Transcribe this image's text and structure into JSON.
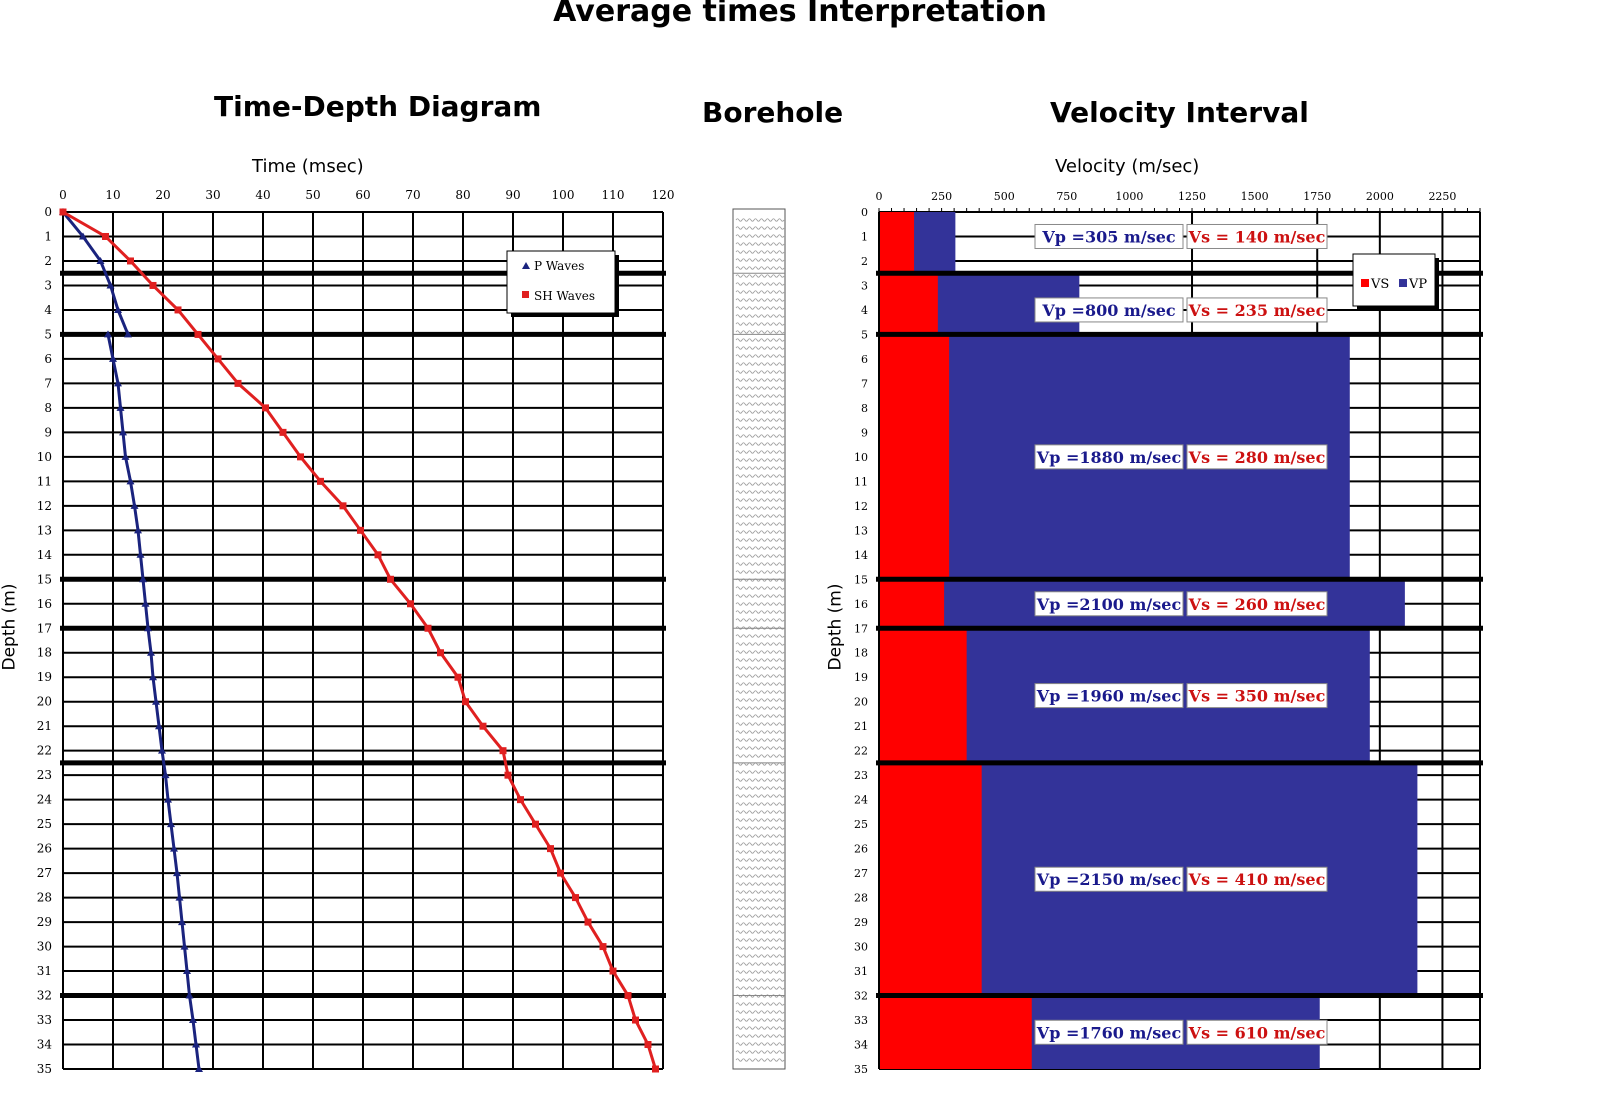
{
  "page": {
    "title": "Average times Interpretation",
    "left_title": "Time-Depth Diagram",
    "middle_title": "Borehole",
    "right_title": "Velocity Interval"
  },
  "chart_data": [
    {
      "type": "line",
      "title": "Time-Depth Diagram",
      "xlabel": "Time (msec)",
      "ylabel": "Depth (m)",
      "xlim": [
        0,
        120
      ],
      "ylim": [
        35,
        0
      ],
      "x_ticks": [
        0,
        10,
        20,
        30,
        40,
        50,
        60,
        70,
        80,
        90,
        100,
        110,
        120
      ],
      "y_ticks": [
        0,
        1,
        2,
        3,
        4,
        5,
        6,
        7,
        8,
        9,
        10,
        11,
        12,
        13,
        14,
        15,
        16,
        17,
        18,
        19,
        20,
        21,
        22,
        23,
        24,
        25,
        26,
        27,
        28,
        29,
        30,
        31,
        32,
        33,
        34,
        35
      ],
      "grid": true,
      "layer_boundaries": [
        2.5,
        5,
        15,
        17,
        22.5,
        32
      ],
      "legend": {
        "position": "top-right",
        "entries": [
          "P Waves",
          "SH Waves"
        ]
      },
      "series": [
        {
          "name": "P Waves",
          "color": "#1a237e",
          "marker": "triangle",
          "segments": [
            {
              "depth": [
                0,
                1,
                2,
                3,
                4,
                5
              ],
              "time": [
                0,
                4,
                7.5,
                9.5,
                11,
                13
              ]
            },
            {
              "depth": [
                5,
                6,
                7,
                8,
                9,
                10,
                11,
                12,
                13,
                14,
                15,
                16,
                17,
                18,
                19,
                20,
                21,
                22,
                23,
                24,
                25,
                26,
                27,
                28,
                29,
                30,
                31,
                32,
                33,
                34,
                35
              ],
              "time": [
                9,
                10,
                11,
                11.5,
                12,
                12.5,
                13.5,
                14.3,
                15,
                15.5,
                16,
                16.5,
                17,
                17.6,
                18,
                18.6,
                19.2,
                19.8,
                20.5,
                21,
                21.6,
                22.2,
                22.8,
                23.3,
                23.8,
                24.3,
                24.8,
                25.3,
                26,
                26.6,
                27.2
              ]
            }
          ]
        },
        {
          "name": "SH Waves",
          "color": "#e02020",
          "marker": "square",
          "segments": [
            {
              "depth": [
                0,
                1,
                2,
                3,
                4,
                5,
                6,
                7,
                8,
                9,
                10,
                11,
                12,
                13,
                14,
                15,
                16,
                17,
                18,
                19,
                20,
                21,
                22,
                23,
                24,
                25,
                26,
                27,
                28,
                29,
                30,
                31,
                32,
                33,
                34,
                35
              ],
              "time": [
                0,
                8.5,
                13.5,
                18,
                23,
                27,
                31,
                35,
                40.5,
                44,
                47.5,
                51.5,
                56,
                59.5,
                63,
                65.5,
                69.5,
                73,
                75.5,
                79,
                80.5,
                84,
                88,
                89,
                91.5,
                94.5,
                97.5,
                99.5,
                102.5,
                105,
                108,
                110,
                113,
                114.5,
                117,
                118.5
              ]
            }
          ]
        }
      ]
    },
    {
      "type": "bar",
      "orientation": "horizontal",
      "title": "Velocity Interval",
      "xlabel": "Velocity (m/sec)",
      "ylabel": "Depth (m)",
      "xlim": [
        0,
        2400
      ],
      "ylim": [
        35,
        0
      ],
      "x_ticks": [
        0,
        250,
        500,
        750,
        1000,
        1250,
        1500,
        1750,
        2000,
        2250
      ],
      "y_ticks": [
        0,
        1,
        2,
        3,
        4,
        5,
        6,
        7,
        8,
        9,
        10,
        11,
        12,
        13,
        14,
        15,
        16,
        17,
        18,
        19,
        20,
        21,
        22,
        23,
        24,
        25,
        26,
        27,
        28,
        29,
        30,
        31,
        32,
        33,
        34,
        35
      ],
      "grid": true,
      "legend": {
        "position": "top-right",
        "entries": [
          "VS",
          "VP"
        ]
      },
      "colors": {
        "VS": "#ff0000",
        "VP": "#333399",
        "vp_label": "#1a1a8c",
        "vs_label": "#cc1111"
      },
      "layers": [
        {
          "top": 0,
          "bottom": 2.5,
          "vp": 305,
          "vs": 140,
          "vp_label": "Vp =305 m/sec",
          "vs_label": "Vs = 140 m/sec"
        },
        {
          "top": 2.5,
          "bottom": 5,
          "vp": 800,
          "vs": 235,
          "vp_label": "Vp =800 m/sec",
          "vs_label": "Vs = 235 m/sec"
        },
        {
          "top": 5,
          "bottom": 15,
          "vp": 1880,
          "vs": 280,
          "vp_label": "Vp =1880 m/sec",
          "vs_label": "Vs = 280 m/sec"
        },
        {
          "top": 15,
          "bottom": 17,
          "vp": 2100,
          "vs": 260,
          "vp_label": "Vp =2100 m/sec",
          "vs_label": "Vs = 260 m/sec"
        },
        {
          "top": 17,
          "bottom": 22.5,
          "vp": 1960,
          "vs": 350,
          "vp_label": "Vp =1960 m/sec",
          "vs_label": "Vs = 350 m/sec"
        },
        {
          "top": 22.5,
          "bottom": 32,
          "vp": 2150,
          "vs": 410,
          "vp_label": "Vp =2150 m/sec",
          "vs_label": "Vs = 410 m/sec"
        },
        {
          "top": 32,
          "bottom": 35,
          "vp": 1760,
          "vs": 610,
          "vp_label": "Vp =1760 m/sec",
          "vs_label": "Vs = 610 m/sec"
        }
      ]
    }
  ]
}
